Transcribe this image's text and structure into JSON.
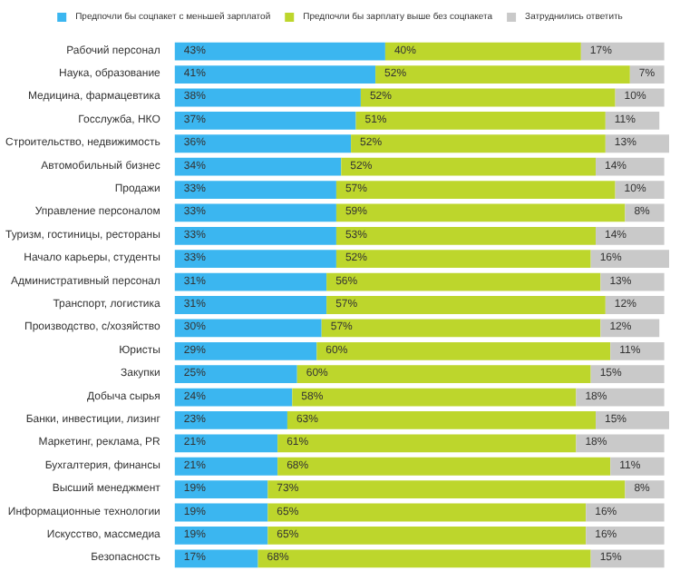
{
  "chart_data": {
    "type": "bar",
    "orientation": "horizontal",
    "stacked": true,
    "legend": "top",
    "tick_labels": "y",
    "categories": [
      "Рабочий персонал",
      "Наука, образование",
      "Медицина, фармацевтика",
      "Госслужба, НКО",
      "Строительство, недвижимость",
      "Автомобильный бизнес",
      "Продажи",
      "Управление персоналом",
      "Туризм, гостиницы, рестораны",
      "Начало карьеры, студенты",
      "Административный персонал",
      "Транспорт, логистика",
      "Производство, с/хозяйство",
      "Юристы",
      "Закупки",
      "Добыча сырья",
      "Банки, инвестиции, лизинг",
      "Маркетинг, реклама, PR",
      "Бухгалтерия, финансы",
      "Высший менеджмент",
      "Информационные технологии",
      "Искусство, массмедиа",
      "Безопасность"
    ],
    "series": [
      {
        "name": "Предпочли бы соцпакет с меньшей зарплатой",
        "color": "#3bb6f0",
        "values": [
          43,
          41,
          38,
          37,
          36,
          34,
          33,
          33,
          33,
          33,
          31,
          31,
          30,
          29,
          25,
          24,
          23,
          21,
          21,
          19,
          19,
          19,
          17
        ],
        "value_labels": [
          "43%",
          "41%",
          "38%",
          "37%",
          "36%",
          "34%",
          "33%",
          "33%",
          "33%",
          "33%",
          "31%",
          "31%",
          "30%",
          "29%",
          "25%",
          "24%",
          "23%",
          "21%",
          "21%",
          "19%",
          "19%",
          "19%",
          "17%"
        ]
      },
      {
        "name": "Предпочли бы зарплату выше без соцпакета",
        "color": "#bdd62c",
        "values": [
          40,
          52,
          52,
          51,
          52,
          52,
          57,
          59,
          53,
          52,
          56,
          57,
          57,
          60,
          60,
          58,
          63,
          61,
          68,
          73,
          65,
          65,
          68
        ],
        "value_labels": [
          "40%",
          "52%",
          "52%",
          "51%",
          "52%",
          "52%",
          "57%",
          "59%",
          "53%",
          "52%",
          "56%",
          "57%",
          "57%",
          "60%",
          "60%",
          "58%",
          "63%",
          "61%",
          "68%",
          "73%",
          "65%",
          "65%",
          "68%"
        ]
      },
      {
        "name": "Затруднились ответить",
        "color": "#c9c9c9",
        "values": [
          17,
          7,
          10,
          11,
          13,
          14,
          10,
          8,
          14,
          16,
          13,
          12,
          12,
          11,
          15,
          18,
          15,
          18,
          11,
          8,
          16,
          16,
          15
        ],
        "value_labels": [
          "17%",
          "7%",
          "10%",
          "11%",
          "13%",
          "14%",
          "10%",
          "8%",
          "14%",
          "16%",
          "13%",
          "12%",
          "12%",
          "11%",
          "15%",
          "18%",
          "15%",
          "18%",
          "11%",
          "8%",
          "16%",
          "16%",
          "15%"
        ]
      }
    ]
  }
}
